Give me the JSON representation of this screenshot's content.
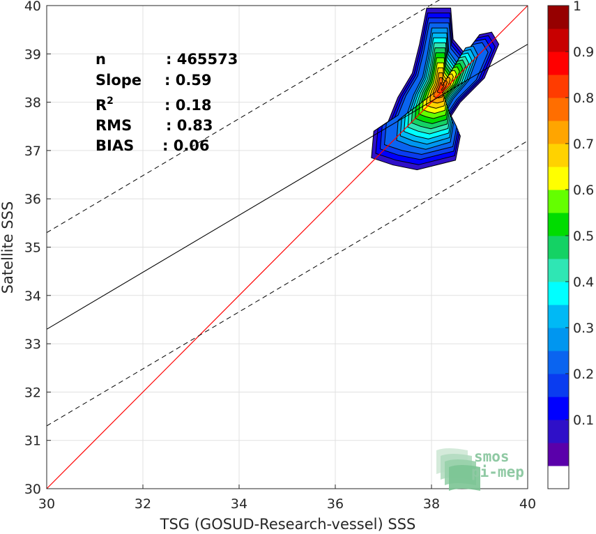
{
  "chart_data": {
    "type": "contour-scatter",
    "xlabel": "TSG (GOSUD-Research-vessel) SSS",
    "ylabel": "Satellite SSS",
    "xlim": [
      30,
      40
    ],
    "ylim": [
      30,
      40
    ],
    "xticks": [
      30,
      32,
      34,
      36,
      38,
      40
    ],
    "yticks": [
      30,
      31,
      32,
      33,
      34,
      35,
      36,
      37,
      38,
      39,
      40
    ],
    "grid": true,
    "stats": [
      {
        "label": "n",
        "value": ": 465573"
      },
      {
        "label": "Slope",
        "value": ": 0.59"
      },
      {
        "label": "R",
        "sup": "2",
        "value": ": 0.18"
      },
      {
        "label": "RMS",
        "value": ": 0.83"
      },
      {
        "label": "BIAS",
        "value": ": 0.06"
      }
    ],
    "one_to_one": {
      "color": "#ff0000",
      "x": [
        30,
        40
      ],
      "y": [
        30,
        40
      ]
    },
    "regression": {
      "slope": 0.59,
      "intercept": 15.6,
      "color": "#000000"
    },
    "confidence_offset": 2.0,
    "density_peak": {
      "x": 38.2,
      "y": 38.3
    },
    "colorbar": {
      "range": [
        0,
        1
      ],
      "ticks": [
        0.1,
        0.2,
        0.3,
        0.4,
        0.5,
        0.6,
        0.7,
        0.8,
        0.9,
        1
      ],
      "tick_labels": [
        "0.1",
        "0.2",
        "0.3",
        "0.4",
        "0.5",
        "0.6",
        "0.7",
        "0.8",
        "0.9",
        "1"
      ],
      "colors": [
        "#ffffff",
        "#5a00aa",
        "#2f10c8",
        "#0000ff",
        "#0a3cf0",
        "#0a64f0",
        "#0096f0",
        "#00b9f5",
        "#00ffff",
        "#2fe6b4",
        "#14d264",
        "#00dc00",
        "#64ff00",
        "#ffff00",
        "#ffd200",
        "#ffa500",
        "#ff6e00",
        "#ff3c00",
        "#ff0000",
        "#c80000",
        "#960000"
      ]
    },
    "logo": {
      "line1": "smos",
      "line2": "pi-mep"
    }
  }
}
